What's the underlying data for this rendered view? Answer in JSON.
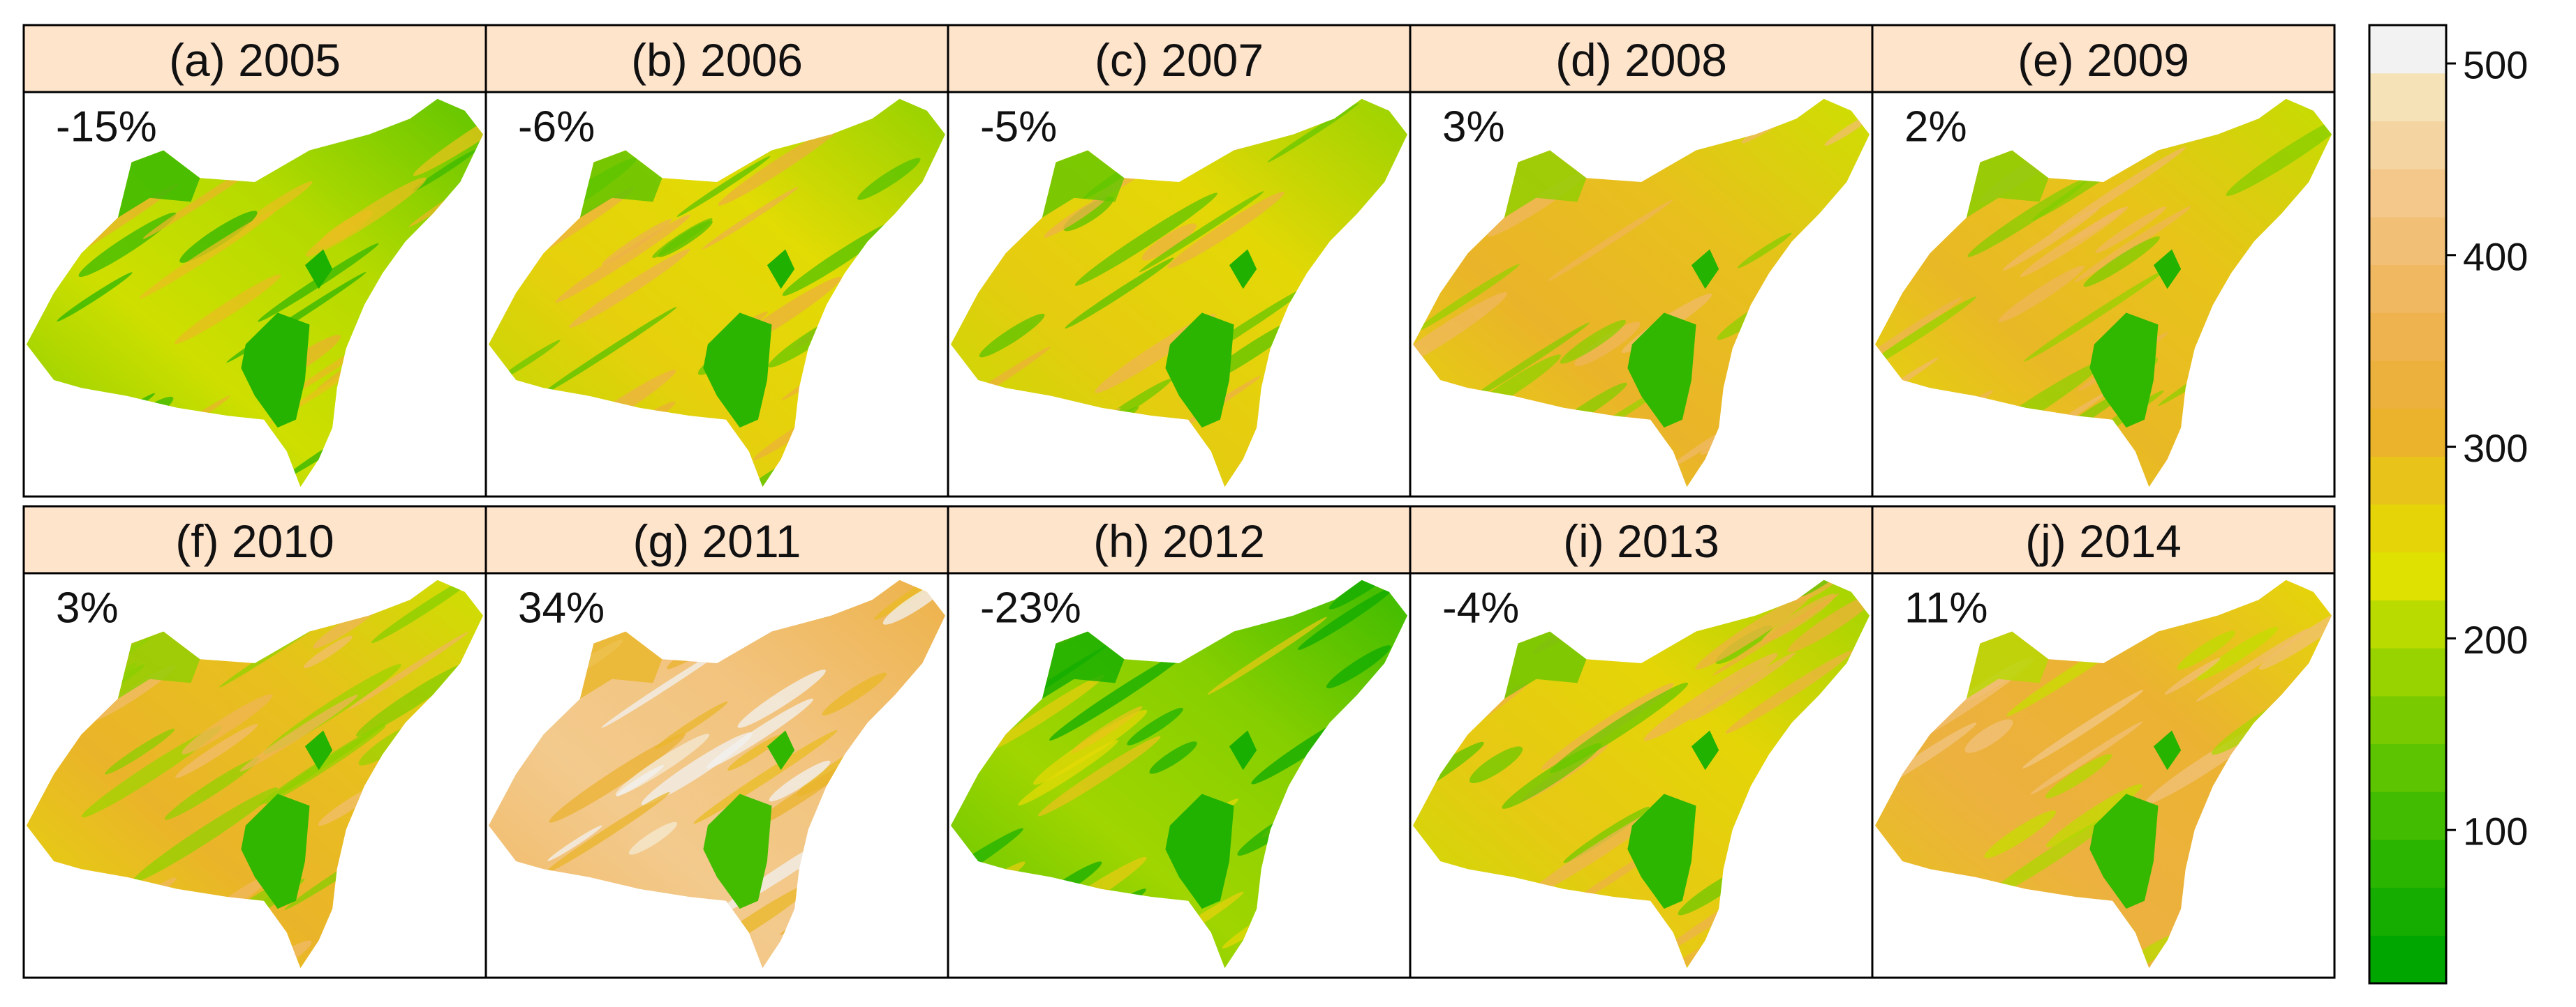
{
  "panels": [
    {
      "title": "(a) 2005",
      "change": "-15%",
      "level": 0.18
    },
    {
      "title": "(b) 2006",
      "change": "-6%",
      "level": 0.34
    },
    {
      "title": "(c) 2007",
      "change": "-5%",
      "level": 0.36
    },
    {
      "title": "(d) 2008",
      "change": "3%",
      "level": 0.5
    },
    {
      "title": "(e) 2009",
      "change": "2%",
      "level": 0.48
    },
    {
      "title": "(f) 2010",
      "change": "3%",
      "level": 0.5
    },
    {
      "title": "(g) 2011",
      "change": "34%",
      "level": 1.0
    },
    {
      "title": "(h) 2012",
      "change": "-23%",
      "level": 0.05
    },
    {
      "title": "(i) 2013",
      "change": "-4%",
      "level": 0.38
    },
    {
      "title": "(j) 2014",
      "change": "11%",
      "level": 0.62
    }
  ],
  "colorbar": {
    "min": 20,
    "max": 520,
    "ticks": [
      {
        "value": 100,
        "label": "100"
      },
      {
        "value": 200,
        "label": "200"
      },
      {
        "value": 300,
        "label": "300"
      },
      {
        "value": 400,
        "label": "400"
      },
      {
        "value": 500,
        "label": "500"
      }
    ],
    "colors": [
      "#00a600",
      "#14ad00",
      "#2ab500",
      "#42bc00",
      "#5cc400",
      "#79cb00",
      "#98d300",
      "#badb00",
      "#dfe200",
      "#e5d408",
      "#e8c31a",
      "#eab32b",
      "#ecb03c",
      "#eeb34e",
      "#f0b861",
      "#f1bf75",
      "#f3c88a",
      "#f4d4a0",
      "#f5e2b7",
      "#f2f2f2"
    ]
  },
  "colors": {
    "strip": "#ffe4cc",
    "frame": "#000000",
    "lake": "#32b400"
  }
}
